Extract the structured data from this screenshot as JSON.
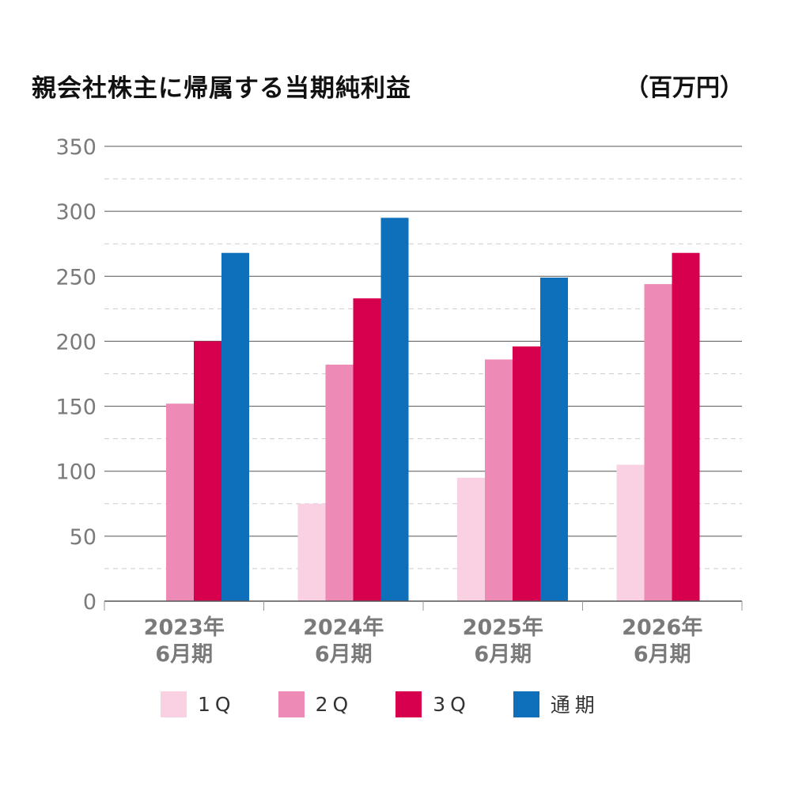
{
  "chart_data": {
    "type": "bar",
    "title": "親会社株主に帰属する当期純利益",
    "unit": "（百万円）",
    "categories": [
      [
        "2023年",
        "6月期"
      ],
      [
        "2024年",
        "6月期"
      ],
      [
        "2025年",
        "6月期"
      ],
      [
        "2026年",
        "6月期"
      ]
    ],
    "series": [
      {
        "name": "1Q",
        "legend_label": "1Q",
        "color": "#f9d1e3",
        "values": [
          null,
          75,
          95,
          105
        ]
      },
      {
        "name": "2Q",
        "legend_label": "2Q",
        "color": "#ee8ab6",
        "values": [
          152,
          182,
          186,
          244
        ]
      },
      {
        "name": "3Q",
        "legend_label": "3Q",
        "color": "#d6004f",
        "values": [
          200,
          233,
          196,
          268
        ]
      },
      {
        "name": "通期",
        "legend_label": "通期",
        "color": "#0e6fba",
        "values": [
          268,
          295,
          249,
          null
        ]
      }
    ],
    "ylim": [
      0,
      350
    ],
    "yticks": [
      0,
      50,
      100,
      150,
      200,
      250,
      300,
      350
    ],
    "grid": true,
    "legend_position": "bottom"
  }
}
